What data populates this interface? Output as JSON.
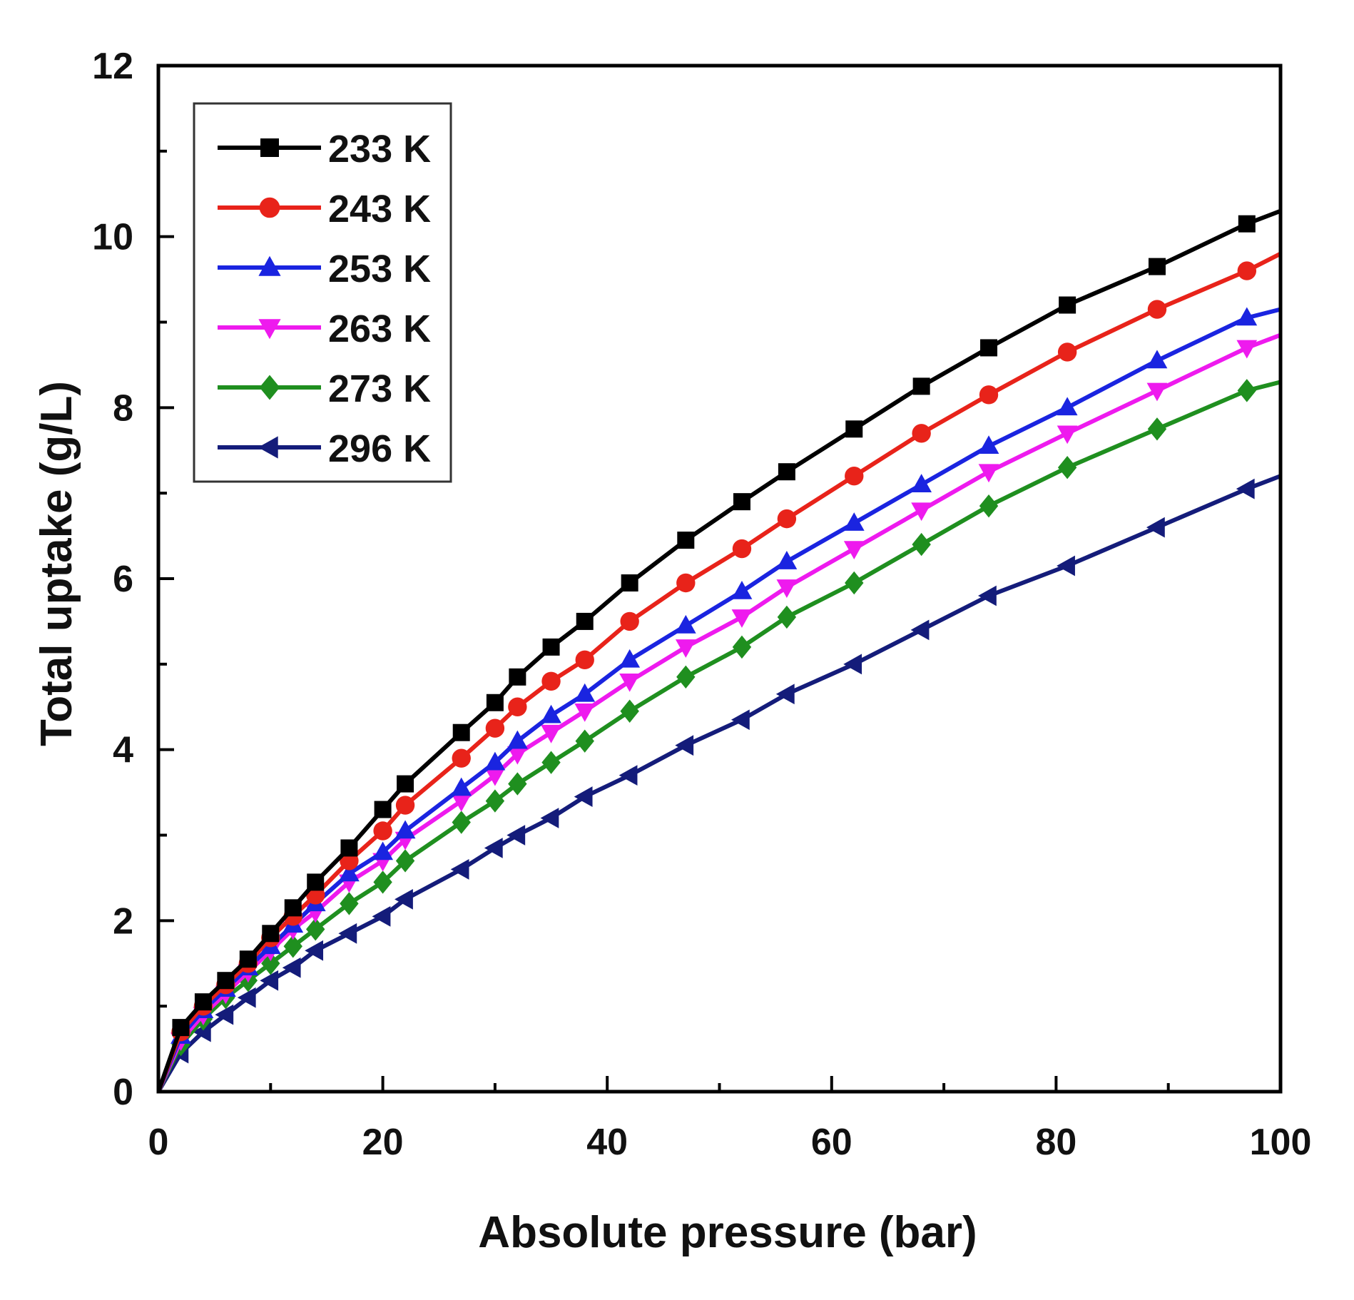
{
  "chart_data": {
    "type": "line",
    "title": "",
    "xlabel": "Absolute pressure (bar)",
    "ylabel": "Total uptake (g/L)",
    "xlim": [
      0,
      100
    ],
    "ylim": [
      0,
      12
    ],
    "x_ticks": [
      "0",
      "20",
      "40",
      "60",
      "80",
      "100"
    ],
    "y_ticks": [
      "0",
      "2",
      "4",
      "6",
      "8",
      "10",
      "12"
    ],
    "grid": false,
    "legend_position": "top-left",
    "series": [
      {
        "name": "233 K",
        "color": "#000000",
        "marker": "square",
        "x": [
          0,
          2,
          4,
          6,
          8,
          10,
          12,
          14,
          17,
          20,
          22,
          27,
          30,
          32,
          35,
          38,
          42,
          47,
          52,
          56,
          62,
          68,
          74,
          81,
          89,
          97,
          100
        ],
        "y": [
          0,
          0.75,
          1.05,
          1.3,
          1.55,
          1.85,
          2.15,
          2.45,
          2.85,
          3.3,
          3.6,
          4.2,
          4.55,
          4.85,
          5.2,
          5.5,
          5.95,
          6.45,
          6.9,
          7.25,
          7.75,
          8.25,
          8.7,
          9.2,
          9.65,
          10.15,
          10.3
        ]
      },
      {
        "name": "243 K",
        "color": "#e8231a",
        "marker": "circle",
        "x": [
          0,
          2,
          4,
          6,
          8,
          10,
          12,
          14,
          17,
          20,
          22,
          27,
          30,
          32,
          35,
          38,
          42,
          47,
          52,
          56,
          62,
          68,
          74,
          81,
          89,
          97,
          100
        ],
        "y": [
          0,
          0.7,
          1.0,
          1.25,
          1.5,
          1.8,
          2.05,
          2.3,
          2.7,
          3.05,
          3.35,
          3.9,
          4.25,
          4.5,
          4.8,
          5.05,
          5.5,
          5.95,
          6.35,
          6.7,
          7.2,
          7.7,
          8.15,
          8.65,
          9.15,
          9.6,
          9.8
        ]
      },
      {
        "name": "253 K",
        "color": "#1a24e0",
        "marker": "triangle-up",
        "x": [
          0,
          2,
          4,
          6,
          8,
          10,
          12,
          14,
          17,
          20,
          22,
          27,
          30,
          32,
          35,
          38,
          42,
          47,
          52,
          56,
          62,
          68,
          74,
          81,
          89,
          97,
          100
        ],
        "y": [
          0,
          0.65,
          0.95,
          1.2,
          1.45,
          1.7,
          1.95,
          2.2,
          2.55,
          2.8,
          3.05,
          3.55,
          3.85,
          4.1,
          4.4,
          4.65,
          5.05,
          5.45,
          5.85,
          6.2,
          6.65,
          7.1,
          7.55,
          8.0,
          8.55,
          9.05,
          9.15
        ]
      },
      {
        "name": "263 K",
        "color": "#ee1aee",
        "marker": "triangle-down",
        "x": [
          0,
          2,
          4,
          6,
          8,
          10,
          12,
          14,
          17,
          20,
          22,
          27,
          30,
          32,
          35,
          38,
          42,
          47,
          52,
          56,
          62,
          68,
          74,
          81,
          89,
          97,
          100
        ],
        "y": [
          0,
          0.6,
          0.9,
          1.15,
          1.4,
          1.65,
          1.9,
          2.1,
          2.45,
          2.7,
          2.95,
          3.4,
          3.7,
          3.95,
          4.2,
          4.45,
          4.8,
          5.2,
          5.55,
          5.9,
          6.35,
          6.8,
          7.25,
          7.7,
          8.2,
          8.7,
          8.85
        ]
      },
      {
        "name": "273 K",
        "color": "#1f8f1f",
        "marker": "diamond",
        "x": [
          0,
          2,
          4,
          6,
          8,
          10,
          12,
          14,
          17,
          20,
          22,
          27,
          30,
          32,
          35,
          38,
          42,
          47,
          52,
          56,
          62,
          68,
          74,
          81,
          89,
          97,
          100
        ],
        "y": [
          0,
          0.55,
          0.85,
          1.1,
          1.3,
          1.5,
          1.7,
          1.9,
          2.2,
          2.45,
          2.7,
          3.15,
          3.4,
          3.6,
          3.85,
          4.1,
          4.45,
          4.85,
          5.2,
          5.55,
          5.95,
          6.4,
          6.85,
          7.3,
          7.75,
          8.2,
          8.3
        ]
      },
      {
        "name": "296 K",
        "color": "#141c7a",
        "marker": "triangle-left",
        "x": [
          0,
          2,
          4,
          6,
          8,
          10,
          12,
          14,
          17,
          20,
          22,
          27,
          30,
          32,
          35,
          38,
          42,
          47,
          52,
          56,
          62,
          68,
          74,
          81,
          89,
          97,
          100
        ],
        "y": [
          0,
          0.45,
          0.7,
          0.9,
          1.1,
          1.3,
          1.45,
          1.65,
          1.85,
          2.05,
          2.25,
          2.6,
          2.85,
          3.0,
          3.2,
          3.45,
          3.7,
          4.05,
          4.35,
          4.65,
          5.0,
          5.4,
          5.8,
          6.15,
          6.6,
          7.05,
          7.2
        ]
      }
    ]
  }
}
